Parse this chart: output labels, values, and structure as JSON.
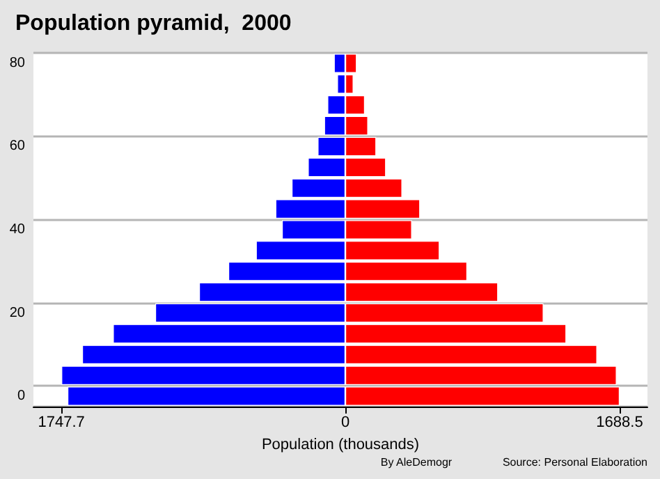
{
  "chart_data": {
    "type": "bar",
    "orientation": "horizontal",
    "stacked": true,
    "title": "Population pyramid,  2000",
    "xlabel": "Population (thousands)",
    "categories": [
      "80",
      null,
      null,
      null,
      "60",
      null,
      null,
      null,
      "40",
      null,
      null,
      null,
      "20",
      null,
      null,
      null,
      "0"
    ],
    "series": [
      {
        "color": "#0000ff",
        "values": [
          -70,
          -50,
          -110,
          -130,
          -170,
          -230,
          -330,
          -430,
          -390,
          -550,
          -720,
          -900,
          -1170,
          -1430,
          -1620,
          -1747.7,
          -1710
        ]
      },
      {
        "color": "#ff0000",
        "values": [
          70,
          50,
          120,
          140,
          190,
          250,
          350,
          460,
          410,
          580,
          750,
          940,
          1220,
          1360,
          1550,
          1670,
          1688.5
        ]
      }
    ],
    "xlim": [
      -1920,
      1860
    ],
    "xticks": [
      {
        "value": -1747.7,
        "label": "1747.7"
      },
      0,
      1688.5
    ],
    "grid": "y",
    "annotations": [
      "By AleDemogr",
      "Source: Personal Elaboration"
    ]
  }
}
